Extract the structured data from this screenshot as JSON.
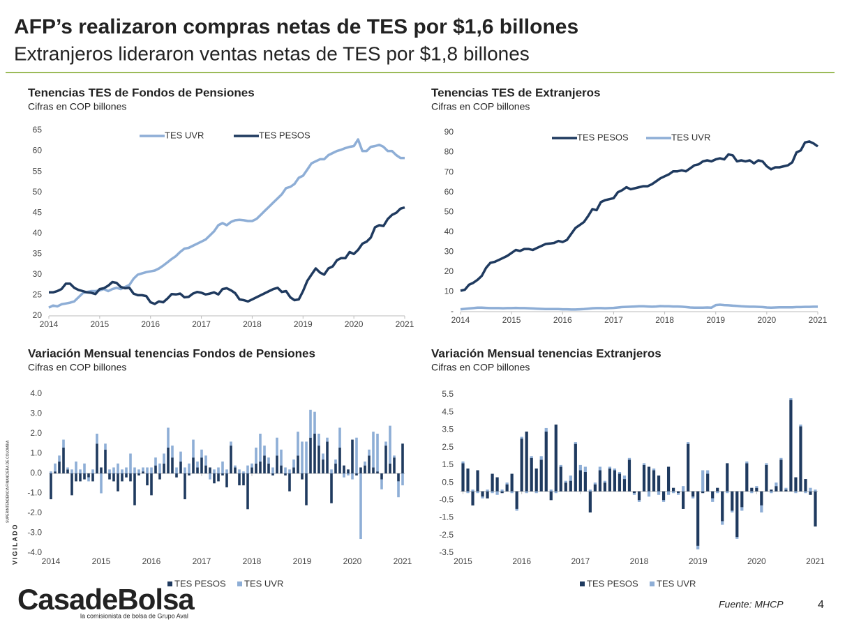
{
  "header": {
    "title": "AFP’s realizaron compras netas de TES por $1,6 billones",
    "subtitle": "Extranjeros lideraron ventas netas de TES por $1,8 billones"
  },
  "footer": {
    "logo": "CasadeBolsa",
    "tagline": "la comisionista de bolsa de Grupo Aval",
    "source": "Fuente: MHCP",
    "page": "4",
    "vigilado": "VIGILADO",
    "regulator": "SUPERINTENDENCIA FINANCIERA DE COLOMBIA"
  },
  "chart_data": [
    {
      "type": "line",
      "title": "Tenencias TES de Fondos de Pensiones",
      "subtitle": "Cifras en COP billones",
      "legend": "top",
      "categories": [
        "2014",
        null,
        null,
        null,
        null,
        null,
        null,
        null,
        null,
        null,
        null,
        null,
        "2015",
        null,
        null,
        null,
        null,
        null,
        null,
        null,
        null,
        null,
        null,
        null,
        "2016",
        null,
        null,
        null,
        null,
        null,
        null,
        null,
        null,
        null,
        null,
        null,
        "2017",
        null,
        null,
        null,
        null,
        null,
        null,
        null,
        null,
        null,
        null,
        null,
        "2018",
        null,
        null,
        null,
        null,
        null,
        null,
        null,
        null,
        null,
        null,
        null,
        "2019",
        null,
        null,
        null,
        null,
        null,
        null,
        null,
        null,
        null,
        null,
        null,
        "2020",
        null,
        null,
        null,
        null,
        null,
        null,
        null,
        null,
        null,
        null,
        null,
        "2021"
      ],
      "ylim": [
        20,
        65
      ],
      "yticks": [
        20,
        25,
        30,
        35,
        40,
        45,
        50,
        55,
        60,
        65
      ],
      "series": [
        {
          "name": "TES UVR",
          "color": "#8eaed6",
          "values": [
            22,
            22.5,
            22.3,
            22.8,
            23,
            23.2,
            23.5,
            24.5,
            25.5,
            25.8,
            26,
            26,
            26.2,
            26.5,
            26,
            26.5,
            26.8,
            26.5,
            27,
            27.5,
            29,
            30,
            30.3,
            30.6,
            30.8,
            31,
            31.5,
            32.2,
            33,
            33.8,
            34.5,
            35.5,
            36.3,
            36.5,
            37,
            37.5,
            38,
            38.5,
            39.5,
            40.5,
            42,
            42.5,
            42,
            42.8,
            43.2,
            43.3,
            43.2,
            43,
            43,
            43.5,
            44.5,
            45.5,
            46.5,
            47.5,
            48.5,
            49.5,
            51,
            51.3,
            52,
            53.5,
            54,
            55.5,
            57,
            57.5,
            58,
            58,
            59,
            59.5,
            60,
            60.3,
            60.7,
            61,
            61.2,
            62.8,
            60,
            60,
            61,
            61.2,
            61.5,
            61,
            60,
            60,
            59,
            58.3,
            58.3
          ]
        },
        {
          "name": "TES PESOS",
          "color": "#1f3a5f",
          "values": [
            25.7,
            25.7,
            26,
            26.5,
            27.8,
            27.8,
            26.8,
            26.3,
            26,
            25.7,
            25.6,
            25.3,
            26.5,
            26.7,
            27.3,
            28.2,
            28,
            27,
            26.7,
            26.8,
            25.4,
            25,
            25,
            24.8,
            23.3,
            22.9,
            23.5,
            23.3,
            24.2,
            25.3,
            25.2,
            25.4,
            24.5,
            24.6,
            25.4,
            25.8,
            25.6,
            25.2,
            25.4,
            25.7,
            25.2,
            26.5,
            26.7,
            26.2,
            25.5,
            24,
            23.8,
            23.5,
            24,
            24.5,
            25,
            25.5,
            26,
            26.5,
            26.8,
            25.8,
            26,
            24.5,
            23.8,
            24,
            26,
            28.5,
            30,
            31.5,
            30.5,
            30,
            31.5,
            32,
            33.5,
            34,
            34,
            35.5,
            35,
            36,
            37.5,
            38,
            39,
            41.5,
            42,
            41.8,
            43.5,
            44.5,
            45,
            46,
            46.3
          ]
        }
      ]
    },
    {
      "type": "line",
      "title": "Tenencias TES de Extranjeros",
      "subtitle": "Cifras en COP billones",
      "legend": "top",
      "categories": [
        "2014",
        null,
        null,
        null,
        null,
        null,
        null,
        null,
        null,
        null,
        null,
        null,
        "2015",
        null,
        null,
        null,
        null,
        null,
        null,
        null,
        null,
        null,
        null,
        null,
        "2016",
        null,
        null,
        null,
        null,
        null,
        null,
        null,
        null,
        null,
        null,
        null,
        "2017",
        null,
        null,
        null,
        null,
        null,
        null,
        null,
        null,
        null,
        null,
        null,
        "2018",
        null,
        null,
        null,
        null,
        null,
        null,
        null,
        null,
        null,
        null,
        null,
        "2019",
        null,
        null,
        null,
        null,
        null,
        null,
        null,
        null,
        null,
        null,
        null,
        "2020",
        null,
        null,
        null,
        null,
        null,
        null,
        null,
        null,
        null,
        null,
        null,
        "2021"
      ],
      "ylim": [
        0,
        90
      ],
      "yticks": [
        {
          "value": 0,
          "label": "-"
        },
        10,
        20,
        30,
        40,
        50,
        60,
        70,
        80,
        90
      ],
      "series": [
        {
          "name": "TES PESOS",
          "color": "#1f3a5f",
          "values": [
            10.5,
            11,
            13.5,
            14.5,
            16,
            18,
            22,
            24.5,
            25,
            26,
            27,
            28,
            29.5,
            31,
            30.5,
            31.5,
            31.5,
            31,
            32,
            33,
            34,
            34.2,
            34.5,
            35.5,
            35,
            36,
            39,
            42,
            43.5,
            45,
            48,
            51.5,
            51,
            55,
            56,
            56.5,
            57,
            60,
            61,
            62.5,
            61.5,
            62,
            62.5,
            63,
            63,
            64,
            65.5,
            67,
            68,
            69,
            70.5,
            70.5,
            71,
            70.5,
            72,
            73.5,
            74,
            75.5,
            76,
            75.5,
            76.5,
            77,
            76.5,
            79,
            78.5,
            75.5,
            76,
            75.5,
            76,
            74.5,
            76,
            75.5,
            73,
            71.5,
            72.5,
            72.5,
            73,
            73.5,
            75,
            80,
            81,
            85,
            85.5,
            84.5,
            83
          ]
        },
        {
          "name": "TES UVR",
          "color": "#8eaed6",
          "values": [
            1.2,
            1.4,
            1.6,
            1.8,
            2,
            2,
            1.9,
            1.8,
            1.8,
            1.8,
            1.7,
            1.8,
            1.8,
            1.9,
            1.8,
            1.8,
            1.7,
            1.6,
            1.5,
            1.4,
            1.3,
            1.3,
            1.3,
            1.3,
            1.2,
            1.2,
            1.1,
            1.1,
            1.2,
            1.3,
            1.5,
            1.7,
            1.8,
            1.8,
            1.7,
            1.8,
            1.9,
            2.1,
            2.3,
            2.4,
            2.5,
            2.6,
            2.7,
            2.7,
            2.6,
            2.5,
            2.6,
            2.8,
            2.7,
            2.7,
            2.6,
            2.6,
            2.5,
            2.3,
            2.1,
            2,
            2,
            2,
            2.1,
            2,
            3.3,
            3.5,
            3.3,
            3.2,
            3,
            2.9,
            2.7,
            2.6,
            2.5,
            2.5,
            2.4,
            2.3,
            2.1,
            2,
            2.1,
            2.2,
            2.2,
            2.2,
            2.2,
            2.3,
            2.3,
            2.4,
            2.4,
            2.5,
            2.5
          ]
        }
      ]
    },
    {
      "type": "bar",
      "title": "Variación Mensual tenencias Fondos de Pensiones",
      "subtitle": "Cifras en COP billones",
      "legend": "bottom",
      "categories": [
        "2014",
        null,
        null,
        null,
        null,
        null,
        null,
        null,
        null,
        null,
        null,
        null,
        "2015",
        null,
        null,
        null,
        null,
        null,
        null,
        null,
        null,
        null,
        null,
        null,
        "2016",
        null,
        null,
        null,
        null,
        null,
        null,
        null,
        null,
        null,
        null,
        null,
        "2017",
        null,
        null,
        null,
        null,
        null,
        null,
        null,
        null,
        null,
        null,
        null,
        "2018",
        null,
        null,
        null,
        null,
        null,
        null,
        null,
        null,
        null,
        null,
        null,
        "2019",
        null,
        null,
        null,
        null,
        null,
        null,
        null,
        null,
        null,
        null,
        null,
        "2020",
        null,
        null,
        null,
        null,
        null,
        null,
        null,
        null,
        null,
        null,
        null,
        "2021"
      ],
      "ylim": [
        -4,
        4
      ],
      "yticks": [
        {
          "value": -4,
          "label": "-4.0"
        },
        {
          "value": -3,
          "label": "-3.0"
        },
        {
          "value": -2,
          "label": "-2.0"
        },
        {
          "value": -1,
          "label": "-1.0"
        },
        {
          "value": 0,
          "label": "0.0"
        },
        {
          "value": 1,
          "label": "1.0"
        },
        {
          "value": 2,
          "label": "2.0"
        },
        {
          "value": 3,
          "label": "3.0"
        },
        {
          "value": 4,
          "label": "4.0"
        }
      ],
      "series": [
        {
          "name": "TES PESOS",
          "color": "#1f3a5f",
          "values": [
            -1.3,
            0.1,
            0.6,
            1.3,
            0.2,
            -1.1,
            -0.4,
            -0.4,
            -0.3,
            -0.2,
            -0.4,
            1.5,
            0.3,
            1.2,
            -0.3,
            -0.4,
            -0.9,
            -0.4,
            -0.2,
            -0.4,
            -1.6,
            -0.1,
            0.1,
            -0.6,
            -1.1,
            0.4,
            -0.3,
            0.5,
            1.3,
            0.8,
            -0.2,
            0.6,
            -1.3,
            -0.1,
            0.8,
            0.3,
            0.8,
            0.4,
            0.3,
            -0.5,
            -0.4,
            -0.1,
            -0.7,
            1.4,
            0.3,
            -0.6,
            -0.6,
            -1.8,
            0.3,
            0.5,
            0.6,
            0.9,
            0.5,
            -0.1,
            0.9,
            0.4,
            -0.1,
            -0.9,
            0.3,
            0.9,
            -0.3,
            -1.6,
            1.8,
            2.0,
            1.4,
            0.7,
            1.6,
            -1.5,
            0.5,
            1.3,
            0.4,
            0.2,
            1.7,
            -0.1,
            0.3,
            0.4,
            0.9,
            0.3,
            0.1,
            -0.3,
            1.4,
            0.5,
            0.8,
            -0.4,
            1.5
          ]
        },
        {
          "name": "TES UVR",
          "color": "#8eaed6",
          "values": [
            0.1,
            0.4,
            0.3,
            0.4,
            0.1,
            0.2,
            0.6,
            0.2,
            0.5,
            -0.2,
            0.2,
            0.5,
            -1.0,
            0.3,
            0.2,
            0.3,
            0.5,
            0.2,
            0.3,
            1.0,
            0.3,
            0.2,
            0.2,
            0.3,
            0.3,
            0.4,
            0.5,
            0.5,
            1.0,
            0.6,
            0.3,
            0.5,
            0.3,
            0.5,
            0.9,
            0.3,
            0.4,
            0.5,
            -0.3,
            0.2,
            0.3,
            0.6,
            0.2,
            0.2,
            0.1,
            0.2,
            0.1,
            0.4,
            0.2,
            0.8,
            1.4,
            0.5,
            0.3,
            0.3,
            0.9,
            0.8,
            0.3,
            0.2,
            0.4,
            1.2,
            1.6,
            1.6,
            1.4,
            1.1,
            0.6,
            0.3,
            0.2,
            0.2,
            0.2,
            1.0,
            -0.2,
            -0.1,
            -0.3,
            1.8,
            -3.3,
            0.2,
            0.3,
            1.8,
            1.9,
            -0.5,
            0.2,
            1.9,
            0.1,
            -0.8,
            -0.6
          ]
        }
      ]
    },
    {
      "type": "bar",
      "title": "Variación Mensual tenencias Extranjeros",
      "subtitle": "Cifras en COP billones",
      "legend": "bottom",
      "categories": [
        "2015",
        null,
        null,
        null,
        null,
        null,
        null,
        null,
        null,
        null,
        null,
        null,
        "2016",
        null,
        null,
        null,
        null,
        null,
        null,
        null,
        null,
        null,
        null,
        null,
        "2017",
        null,
        null,
        null,
        null,
        null,
        null,
        null,
        null,
        null,
        null,
        null,
        "2018",
        null,
        null,
        null,
        null,
        null,
        null,
        null,
        null,
        null,
        null,
        null,
        "2019",
        null,
        null,
        null,
        null,
        null,
        null,
        null,
        null,
        null,
        null,
        null,
        "2020",
        null,
        null,
        null,
        null,
        null,
        null,
        null,
        null,
        null,
        null,
        null,
        "2021"
      ],
      "ylim": [
        -3.5,
        5.5
      ],
      "yticks": [
        -3.5,
        -2.5,
        -1.5,
        -0.5,
        0.5,
        1.5,
        2.5,
        3.5,
        4.5,
        5.5
      ],
      "series": [
        {
          "name": "TES PESOS",
          "color": "#1f3a5f",
          "values": [
            1.6,
            1.3,
            -0.8,
            1.2,
            -0.3,
            -0.4,
            1.0,
            0.8,
            -0.1,
            0.4,
            1.0,
            -1.0,
            3.0,
            3.4,
            1.9,
            1.3,
            1.8,
            3.4,
            -0.5,
            3.8,
            1.4,
            0.5,
            0.6,
            2.7,
            1.2,
            1.1,
            -1.2,
            0.4,
            1.2,
            0.5,
            1.3,
            1.2,
            1.0,
            0.7,
            1.8,
            -0.1,
            -0.5,
            1.5,
            1.4,
            1.2,
            0.9,
            -0.5,
            1.4,
            0.2,
            -0.1,
            -1.0,
            2.7,
            -0.3,
            -3.1,
            -0.1,
            1.0,
            -0.4,
            0.2,
            -1.7,
            1.6,
            -1.1,
            -2.6,
            -0.9,
            1.6,
            0.2,
            0.2,
            -0.8,
            1.5,
            0.1,
            0.3,
            1.8,
            0.1,
            5.2,
            0.8,
            3.7,
            0.7,
            -0.2,
            -2.0
          ]
        },
        {
          "name": "TES UVR",
          "color": "#8eaed6",
          "values": [
            0.1,
            -0.1,
            0.1,
            -0.1,
            -0.1,
            0.1,
            -0.1,
            -0.2,
            0.1,
            0.1,
            -0.1,
            -0.1,
            0.1,
            -0.1,
            0.1,
            -0.1,
            0.2,
            0.2,
            0.1,
            -0.1,
            0.1,
            0.1,
            0.3,
            0.1,
            0.3,
            0.3,
            0.1,
            0.1,
            0.2,
            0.1,
            0.1,
            0.1,
            0.1,
            0.2,
            0.1,
            -0.1,
            -0.1,
            0.1,
            -0.3,
            0.1,
            -0.2,
            -0.1,
            -0.2,
            -0.1,
            -0.1,
            0.3,
            0.1,
            -0.1,
            -0.2,
            1.2,
            0.2,
            -0.2,
            -0.1,
            -0.2,
            -0.1,
            -0.1,
            -0.1,
            -0.2,
            0.1,
            -0.1,
            0.1,
            -0.4,
            0.1,
            -0.1,
            0.2,
            0.1,
            0.1,
            0.1,
            -0.1,
            0.1,
            -0.1,
            0.2,
            0.1
          ]
        }
      ]
    }
  ]
}
